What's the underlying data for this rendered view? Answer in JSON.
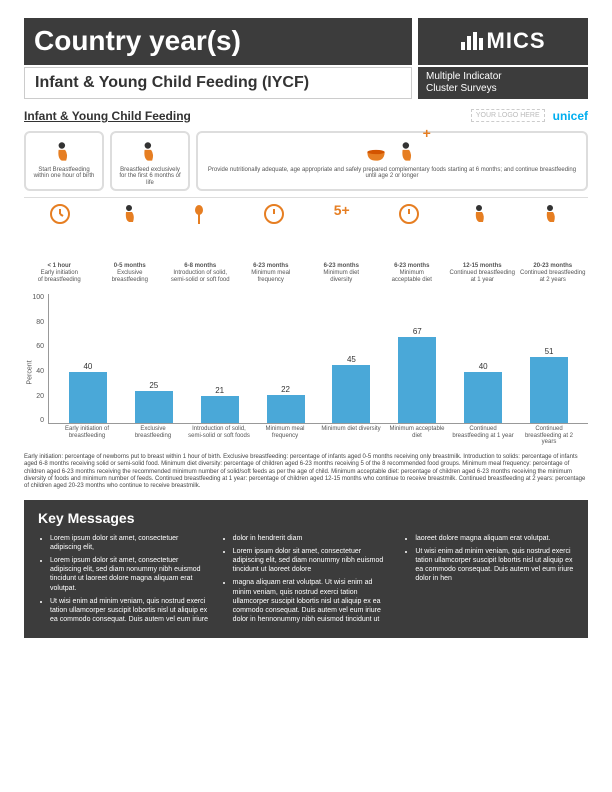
{
  "header": {
    "country_title": "Country year(s)",
    "mics_label": "MICS",
    "section_title": "Infant & Young Child Feeding (IYCF)",
    "subtitle_line1": "Multiple Indicator",
    "subtitle_line2": "Cluster Surveys"
  },
  "section_label": "Infant & Young Child Feeding",
  "logos": {
    "placeholder": "YOUR LOGO HERE",
    "unicef": "unicef"
  },
  "stages": {
    "s1": "Start Breastfeeding within one hour of birth",
    "s2": "Breastfeed exclusively for the first 6 months of life",
    "s3": "Provide nutritionally adequate, age appropriate and safely prepared complementary foods starting at 6 months; and continue breastfeeding until age 2 or longer"
  },
  "indicators": [
    {
      "t1": "< 1 hour",
      "t2": "Early initiation",
      "t3": "of breastfeeding"
    },
    {
      "t1": "0-5 months",
      "t2": "Exclusive",
      "t3": "breastfeeding"
    },
    {
      "t1": "6-8 months",
      "t2": "Introduction of solid,",
      "t3": "semi-solid or soft food"
    },
    {
      "t1": "6-23 months",
      "t2": "Minimum meal",
      "t3": "frequency"
    },
    {
      "t1": "6-23 months",
      "t2": "Minimum diet",
      "t3": "diversity"
    },
    {
      "t1": "6-23 months",
      "t2": "Minimum",
      "t3": "acceptable diet"
    },
    {
      "t1": "12-15 months",
      "t2": "Continued breastfeeding",
      "t3": "at 1 year"
    },
    {
      "t1": "20-23 months",
      "t2": "Continued breastfeeding",
      "t3": "at 2 years"
    }
  ],
  "chart": {
    "ylabel": "Percent",
    "ymax": 100,
    "yticks": [
      "100",
      "80",
      "60",
      "40",
      "20",
      "0"
    ],
    "bar_color": "#4aa8d8",
    "bars": [
      {
        "label": "Early initiation of breastfeeding",
        "value": 40
      },
      {
        "label": "Exclusive breastfeeding",
        "value": 25
      },
      {
        "label": "Introduction of solid, semi-solid or soft foods",
        "value": 21
      },
      {
        "label": "Minimum meal frequency",
        "value": 22
      },
      {
        "label": "Minimum diet diversity",
        "value": 45
      },
      {
        "label": "Minimum acceptable diet",
        "value": 67
      },
      {
        "label": "Continued breastfeeding at 1 year",
        "value": 40
      },
      {
        "label": "Continued breastfeeding at 2 years",
        "value": 51
      }
    ]
  },
  "definitions": "Early initiation: percentage of newborns put to breast within 1 hour of birth. Exclusive breastfeeding: percentage of infants aged 0-5 months receiving only breastmilk. Introduction to solids: percentage of infants aged 6-8 months receiving solid or semi-solid food. Minimum diet diversity: percentage of children aged 6-23 months receiving 5 of the 8 recommended food groups. Minimum meal frequency: percentage of children aged 6-23 months receiving the recommended minimum number of solid/soft feeds as per the age of child. Minimum acceptable diet: percentage of children aged 6-23 months receiving the minimum diversity of foods and minimum number of feeds. Continued breastfeeding at 1 year: percentage of children aged 12-15 months who continue to receive breastmilk. Continued breastfeeding at 2 years: percentage of children aged 20-23 months who continue to receive breastmilk.",
  "key_messages": {
    "title": "Key Messages",
    "col1": [
      "Lorem ipsum dolor sit amet, consectetuer adipiscing elit,",
      "Lorem ipsum dolor sit amet, consectetuer adipiscing elit, sed diam nonummy nibh euismod tincidunt ut laoreet dolore magna aliquam erat volutpat.",
      "Ut wisi enim ad minim veniam, quis nostrud exerci tation ullamcorper suscipit lobortis nisl ut aliquip ex ea commodo consequat. Duis autem vel eum iriure"
    ],
    "col2": [
      "dolor in hendrerit diam",
      "Lorem ipsum dolor sit amet, consectetuer adipiscing elit, sed diam nonummy nibh euismod tincidunt ut laoreet dolore",
      "magna aliquam erat volutpat. Ut wisi enim ad minim veniam, quis nostrud exerci tation ullamcorper suscipit lobortis nisl ut aliquip ex ea commodo consequat. Duis autem vel eum iriure dolor in hennonummy nibh euismod tincidunt ut"
    ],
    "col3": [
      "laoreet dolore magna aliquam erat volutpat.",
      "Ut wisi enim ad minim veniam, quis nostrud exerci tation ullamcorper suscipit lobortis nisl ut aliquip ex ea commodo consequat. Duis autem vel eum iriure dolor in hen"
    ]
  },
  "colors": {
    "accent": "#e67e22",
    "bar": "#4aa8d8",
    "dark": "#3c3c3c"
  }
}
